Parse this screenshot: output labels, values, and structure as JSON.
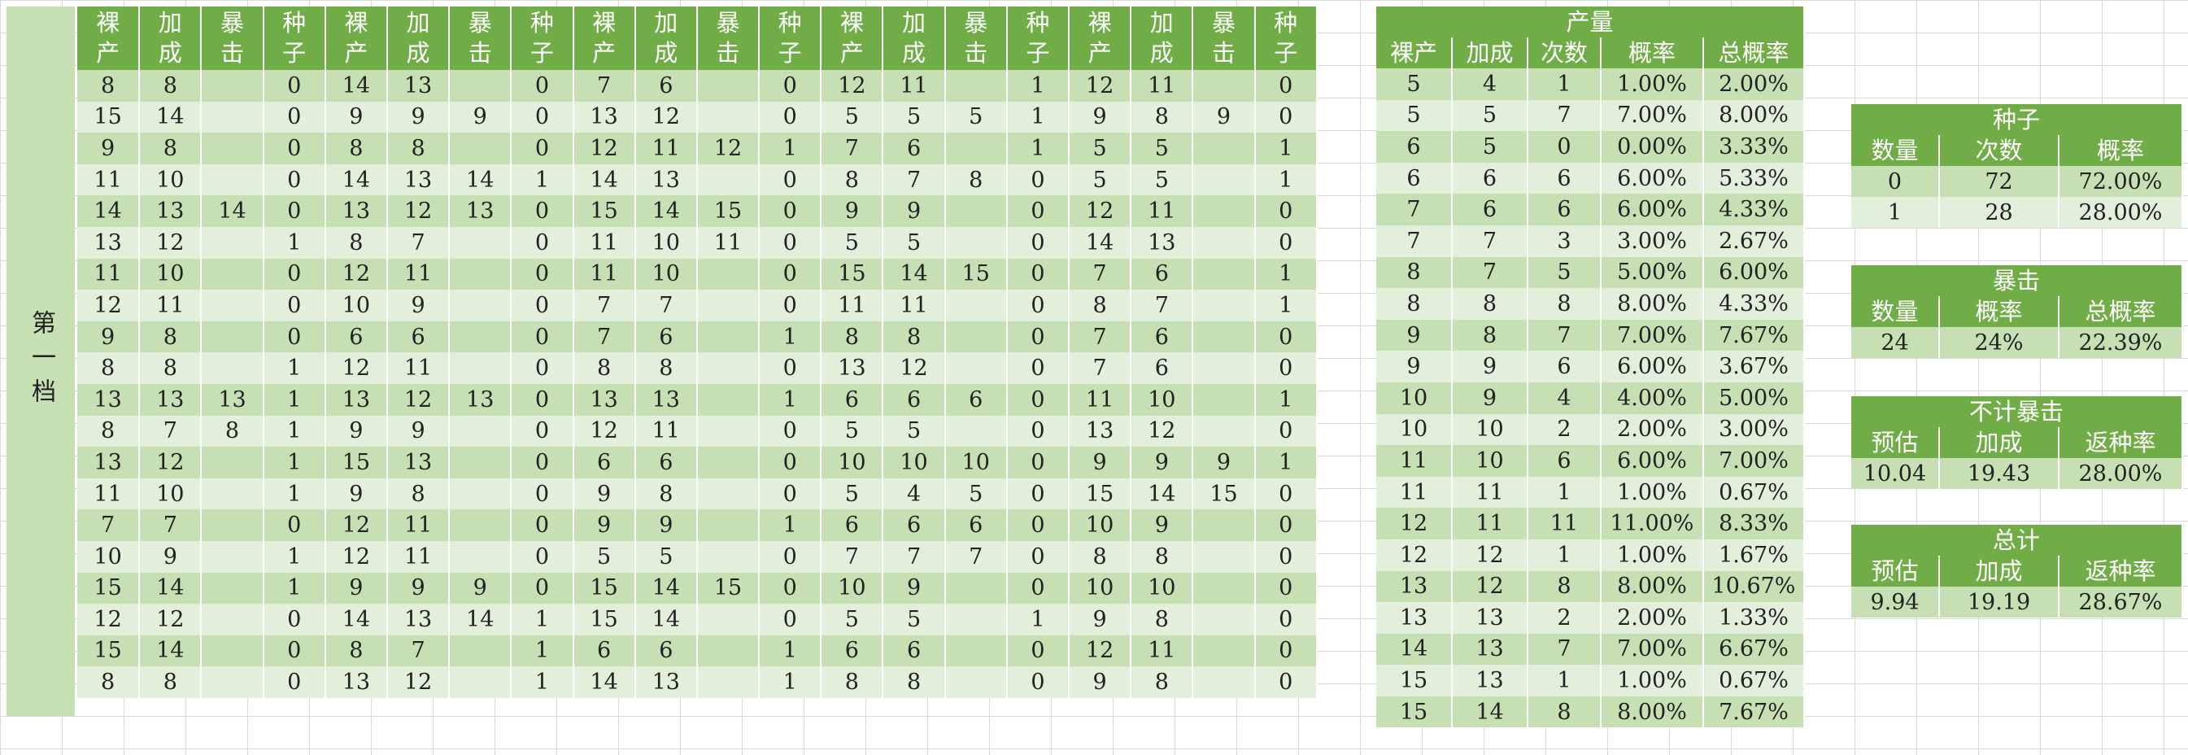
{
  "sidebar": {
    "label": "第一档"
  },
  "main": {
    "headers": [
      "裸产",
      "加成",
      "暴击",
      "种子",
      "裸产",
      "加成",
      "暴击",
      "种子",
      "裸产",
      "加成",
      "暴击",
      "种子",
      "裸产",
      "加成",
      "暴击",
      "种子",
      "裸产",
      "加成",
      "暴击",
      "种子"
    ],
    "rows": [
      [
        "8",
        "8",
        "",
        "0",
        "14",
        "13",
        "",
        "0",
        "7",
        "6",
        "",
        "0",
        "12",
        "11",
        "",
        "1",
        "12",
        "11",
        "",
        "0"
      ],
      [
        "15",
        "14",
        "",
        "0",
        "9",
        "9",
        "9",
        "0",
        "13",
        "12",
        "",
        "0",
        "5",
        "5",
        "5",
        "1",
        "9",
        "8",
        "9",
        "0"
      ],
      [
        "9",
        "8",
        "",
        "0",
        "8",
        "8",
        "",
        "0",
        "12",
        "11",
        "12",
        "1",
        "7",
        "6",
        "",
        "1",
        "5",
        "5",
        "",
        "1"
      ],
      [
        "11",
        "10",
        "",
        "0",
        "14",
        "13",
        "14",
        "1",
        "14",
        "13",
        "",
        "0",
        "8",
        "7",
        "8",
        "0",
        "5",
        "5",
        "",
        "1"
      ],
      [
        "14",
        "13",
        "14",
        "0",
        "13",
        "12",
        "13",
        "0",
        "15",
        "14",
        "15",
        "0",
        "9",
        "9",
        "",
        "0",
        "12",
        "11",
        "",
        "0"
      ],
      [
        "13",
        "12",
        "",
        "1",
        "8",
        "7",
        "",
        "0",
        "11",
        "10",
        "11",
        "0",
        "5",
        "5",
        "",
        "0",
        "14",
        "13",
        "",
        "0"
      ],
      [
        "11",
        "10",
        "",
        "0",
        "12",
        "11",
        "",
        "0",
        "11",
        "10",
        "",
        "0",
        "15",
        "14",
        "15",
        "0",
        "7",
        "6",
        "",
        "1"
      ],
      [
        "12",
        "11",
        "",
        "0",
        "10",
        "9",
        "",
        "0",
        "7",
        "7",
        "",
        "0",
        "11",
        "11",
        "",
        "0",
        "8",
        "7",
        "",
        "1"
      ],
      [
        "9",
        "8",
        "",
        "0",
        "6",
        "6",
        "",
        "0",
        "7",
        "6",
        "",
        "1",
        "8",
        "8",
        "",
        "0",
        "7",
        "6",
        "",
        "0"
      ],
      [
        "8",
        "8",
        "",
        "1",
        "12",
        "11",
        "",
        "0",
        "8",
        "8",
        "",
        "0",
        "13",
        "12",
        "",
        "0",
        "7",
        "6",
        "",
        "0"
      ],
      [
        "13",
        "13",
        "13",
        "1",
        "13",
        "12",
        "13",
        "0",
        "13",
        "13",
        "",
        "1",
        "6",
        "6",
        "6",
        "0",
        "11",
        "10",
        "",
        "1"
      ],
      [
        "8",
        "7",
        "8",
        "1",
        "9",
        "9",
        "",
        "0",
        "12",
        "11",
        "",
        "0",
        "5",
        "5",
        "",
        "0",
        "13",
        "12",
        "",
        "0"
      ],
      [
        "13",
        "12",
        "",
        "1",
        "15",
        "13",
        "",
        "0",
        "6",
        "6",
        "",
        "0",
        "10",
        "10",
        "10",
        "0",
        "9",
        "9",
        "9",
        "1"
      ],
      [
        "11",
        "10",
        "",
        "1",
        "9",
        "8",
        "",
        "0",
        "9",
        "8",
        "",
        "0",
        "5",
        "4",
        "5",
        "0",
        "15",
        "14",
        "15",
        "0"
      ],
      [
        "7",
        "7",
        "",
        "0",
        "12",
        "11",
        "",
        "0",
        "9",
        "9",
        "",
        "1",
        "6",
        "6",
        "6",
        "0",
        "10",
        "9",
        "",
        "0"
      ],
      [
        "10",
        "9",
        "",
        "1",
        "12",
        "11",
        "",
        "0",
        "5",
        "5",
        "",
        "0",
        "7",
        "7",
        "7",
        "0",
        "8",
        "8",
        "",
        "0"
      ],
      [
        "15",
        "14",
        "",
        "1",
        "9",
        "9",
        "9",
        "0",
        "15",
        "14",
        "15",
        "0",
        "10",
        "9",
        "",
        "0",
        "10",
        "10",
        "",
        "0"
      ],
      [
        "12",
        "12",
        "",
        "0",
        "14",
        "13",
        "14",
        "1",
        "15",
        "14",
        "",
        "0",
        "5",
        "5",
        "",
        "1",
        "9",
        "8",
        "",
        "0"
      ],
      [
        "15",
        "14",
        "",
        "0",
        "8",
        "7",
        "",
        "1",
        "6",
        "6",
        "",
        "1",
        "6",
        "6",
        "",
        "0",
        "12",
        "11",
        "",
        "0"
      ],
      [
        "8",
        "8",
        "",
        "0",
        "13",
        "12",
        "",
        "1",
        "14",
        "13",
        "",
        "1",
        "8",
        "8",
        "",
        "0",
        "9",
        "8",
        "",
        "0"
      ]
    ]
  },
  "yield": {
    "title": "产量",
    "headers": [
      "裸产",
      "加成",
      "次数",
      "概率",
      "总概率"
    ],
    "rows": [
      [
        "5",
        "4",
        "1",
        "1.00%",
        "2.00%"
      ],
      [
        "5",
        "5",
        "7",
        "7.00%",
        "8.00%"
      ],
      [
        "6",
        "5",
        "0",
        "0.00%",
        "3.33%"
      ],
      [
        "6",
        "6",
        "6",
        "6.00%",
        "5.33%"
      ],
      [
        "7",
        "6",
        "6",
        "6.00%",
        "4.33%"
      ],
      [
        "7",
        "7",
        "3",
        "3.00%",
        "2.67%"
      ],
      [
        "8",
        "7",
        "5",
        "5.00%",
        "6.00%"
      ],
      [
        "8",
        "8",
        "8",
        "8.00%",
        "4.33%"
      ],
      [
        "9",
        "8",
        "7",
        "7.00%",
        "7.67%"
      ],
      [
        "9",
        "9",
        "6",
        "6.00%",
        "3.67%"
      ],
      [
        "10",
        "9",
        "4",
        "4.00%",
        "5.00%"
      ],
      [
        "10",
        "10",
        "2",
        "2.00%",
        "3.00%"
      ],
      [
        "11",
        "10",
        "6",
        "6.00%",
        "7.00%"
      ],
      [
        "11",
        "11",
        "1",
        "1.00%",
        "0.67%"
      ],
      [
        "12",
        "11",
        "11",
        "11.00%",
        "8.33%"
      ],
      [
        "12",
        "12",
        "1",
        "1.00%",
        "1.67%"
      ],
      [
        "13",
        "12",
        "8",
        "8.00%",
        "10.67%"
      ],
      [
        "13",
        "13",
        "2",
        "2.00%",
        "1.33%"
      ],
      [
        "14",
        "13",
        "7",
        "7.00%",
        "6.67%"
      ],
      [
        "15",
        "13",
        "1",
        "1.00%",
        "0.67%"
      ],
      [
        "15",
        "14",
        "8",
        "8.00%",
        "7.67%"
      ]
    ]
  },
  "seed": {
    "title": "种子",
    "headers": [
      "数量",
      "次数",
      "概率"
    ],
    "rows": [
      [
        "0",
        "72",
        "72.00%"
      ],
      [
        "1",
        "28",
        "28.00%"
      ]
    ]
  },
  "crit": {
    "title": "暴击",
    "headers": [
      "数量",
      "概率",
      "总概率"
    ],
    "rows": [
      [
        "24",
        "24%",
        "22.39%"
      ]
    ]
  },
  "nocrit": {
    "title": "不计暴击",
    "headers": [
      "预估",
      "加成",
      "返种率"
    ],
    "rows": [
      [
        "10.04",
        "19.43",
        "28.00%"
      ]
    ]
  },
  "total": {
    "title": "总计",
    "headers": [
      "预估",
      "加成",
      "返种率"
    ],
    "rows": [
      [
        "9.94",
        "19.19",
        "28.67%"
      ]
    ]
  }
}
